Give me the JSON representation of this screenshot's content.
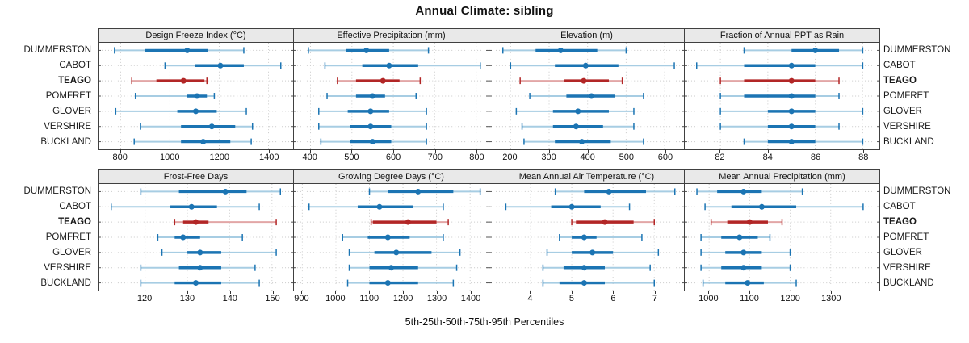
{
  "title": "Annual Climate: sibling",
  "axis_label": "5th-25th-50th-75th-95th Percentiles",
  "percentile_labels": [
    "5th",
    "25th",
    "50th",
    "75th",
    "95th"
  ],
  "locations": [
    "DUMMERSTON",
    "CABOT",
    "TEAGO",
    "POMFRET",
    "GLOVER",
    "VERSHIRE",
    "BUCKLAND"
  ],
  "highlight_location": "TEAGO",
  "colors": {
    "normal": "#1b74b3",
    "normal_light": "#a7cde3",
    "highlight": "#b22626",
    "highlight_light": "#e2a6a6",
    "header_bg": "#e9e9e9",
    "panel_border": "#404040",
    "grid": "#c9c9c9",
    "text": "#111111"
  },
  "chart_data": [
    {
      "type": "dotplot-range",
      "panel_title": "Design Freeze Index (°C)",
      "grid_row": 0,
      "xticks": [
        800,
        1000,
        1200,
        1400
      ],
      "xlim": [
        710,
        1500
      ],
      "values": [
        [
          775,
          900,
          1070,
          1155,
          1300
        ],
        [
          980,
          1100,
          1205,
          1300,
          1450
        ],
        [
          845,
          945,
          1055,
          1140,
          1150
        ],
        [
          860,
          1070,
          1110,
          1150,
          1180
        ],
        [
          780,
          1030,
          1105,
          1190,
          1310
        ],
        [
          880,
          1045,
          1170,
          1265,
          1335
        ],
        [
          855,
          1045,
          1135,
          1245,
          1330
        ]
      ]
    },
    {
      "type": "dotplot-range",
      "panel_title": "Effective Precipitation (mm)",
      "grid_row": 0,
      "xticks": [
        400,
        500,
        600,
        700,
        800
      ],
      "xlim": [
        360,
        830
      ],
      "values": [
        [
          395,
          485,
          535,
          590,
          685
        ],
        [
          435,
          525,
          590,
          660,
          810
        ],
        [
          465,
          510,
          575,
          615,
          665
        ],
        [
          440,
          510,
          550,
          580,
          655
        ],
        [
          420,
          490,
          545,
          590,
          680
        ],
        [
          420,
          495,
          545,
          595,
          680
        ],
        [
          425,
          495,
          550,
          595,
          680
        ]
      ]
    },
    {
      "type": "dotplot-range",
      "panel_title": "Elevation (m)",
      "grid_row": 0,
      "xticks": [
        200,
        300,
        400,
        500,
        600
      ],
      "xlim": [
        145,
        650
      ],
      "values": [
        [
          180,
          265,
          330,
          425,
          500
        ],
        [
          200,
          315,
          395,
          480,
          625
        ],
        [
          225,
          340,
          390,
          455,
          490
        ],
        [
          250,
          345,
          410,
          470,
          545
        ],
        [
          215,
          310,
          375,
          455,
          520
        ],
        [
          230,
          310,
          370,
          440,
          520
        ],
        [
          235,
          315,
          385,
          460,
          545
        ]
      ]
    },
    {
      "type": "dotplot-range",
      "panel_title": "Fraction of Annual PPT as Rain",
      "grid_row": 0,
      "xticks": [
        82,
        84,
        86,
        88
      ],
      "xlim": [
        80.5,
        88.7
      ],
      "values": [
        [
          83,
          85,
          86,
          87,
          88
        ],
        [
          81,
          83,
          85,
          86,
          88
        ],
        [
          82,
          83,
          85,
          86,
          87
        ],
        [
          82,
          83,
          85,
          86,
          87
        ],
        [
          82,
          84,
          85,
          86,
          88
        ],
        [
          82,
          84,
          85,
          86,
          87
        ],
        [
          83,
          84,
          85,
          86,
          88
        ]
      ]
    },
    {
      "type": "dotplot-range",
      "panel_title": "Frost-Free Days",
      "grid_row": 1,
      "xticks": [
        120,
        130,
        140,
        150
      ],
      "xlim": [
        109,
        155
      ],
      "values": [
        [
          119,
          128,
          139,
          144,
          152
        ],
        [
          112,
          126,
          131,
          137,
          147
        ],
        [
          127,
          129,
          132,
          135,
          151
        ],
        [
          123,
          127,
          129,
          133,
          143
        ],
        [
          124,
          130,
          133,
          138,
          151
        ],
        [
          119,
          128,
          133,
          138,
          146
        ],
        [
          119,
          127,
          132,
          138,
          147
        ]
      ]
    },
    {
      "type": "dotplot-range",
      "panel_title": "Growing Degree Days (°C)",
      "grid_row": 1,
      "xticks": [
        900,
        1000,
        1100,
        1200,
        1300,
        1400
      ],
      "xlim": [
        875,
        1455
      ],
      "values": [
        [
          1100,
          1155,
          1245,
          1350,
          1430
        ],
        [
          920,
          1065,
          1130,
          1230,
          1320
        ],
        [
          1105,
          1110,
          1215,
          1300,
          1335
        ],
        [
          1020,
          1095,
          1155,
          1220,
          1320
        ],
        [
          1040,
          1115,
          1180,
          1285,
          1370
        ],
        [
          1040,
          1100,
          1165,
          1245,
          1360
        ],
        [
          1035,
          1100,
          1155,
          1245,
          1350
        ]
      ]
    },
    {
      "type": "dotplot-range",
      "panel_title": "Mean Annual Air Temperature (°C)",
      "grid_row": 1,
      "xticks": [
        4,
        5,
        6,
        7
      ],
      "xlim": [
        3.0,
        7.72
      ],
      "values": [
        [
          4.6,
          5.3,
          5.9,
          6.8,
          7.5
        ],
        [
          3.4,
          4.5,
          5.0,
          5.7,
          6.4
        ],
        [
          5.0,
          5.1,
          5.8,
          6.5,
          7.0
        ],
        [
          4.7,
          5.0,
          5.3,
          5.6,
          6.7
        ],
        [
          4.4,
          5.0,
          5.5,
          6.0,
          7.1
        ],
        [
          4.3,
          4.8,
          5.3,
          5.8,
          6.9
        ],
        [
          4.3,
          4.7,
          5.3,
          5.8,
          7.0
        ]
      ]
    },
    {
      "type": "dotplot-range",
      "panel_title": "Mean Annual Precipitation (mm)",
      "grid_row": 1,
      "xticks": [
        1000,
        1100,
        1200,
        1300
      ],
      "xlim": [
        940,
        1420
      ],
      "values": [
        [
          970,
          1020,
          1085,
          1130,
          1230
        ],
        [
          990,
          1055,
          1130,
          1215,
          1380
        ],
        [
          1005,
          1045,
          1100,
          1145,
          1180
        ],
        [
          980,
          1030,
          1075,
          1120,
          1150
        ],
        [
          980,
          1040,
          1085,
          1130,
          1200
        ],
        [
          980,
          1030,
          1085,
          1130,
          1200
        ],
        [
          985,
          1040,
          1095,
          1135,
          1215
        ]
      ]
    }
  ]
}
